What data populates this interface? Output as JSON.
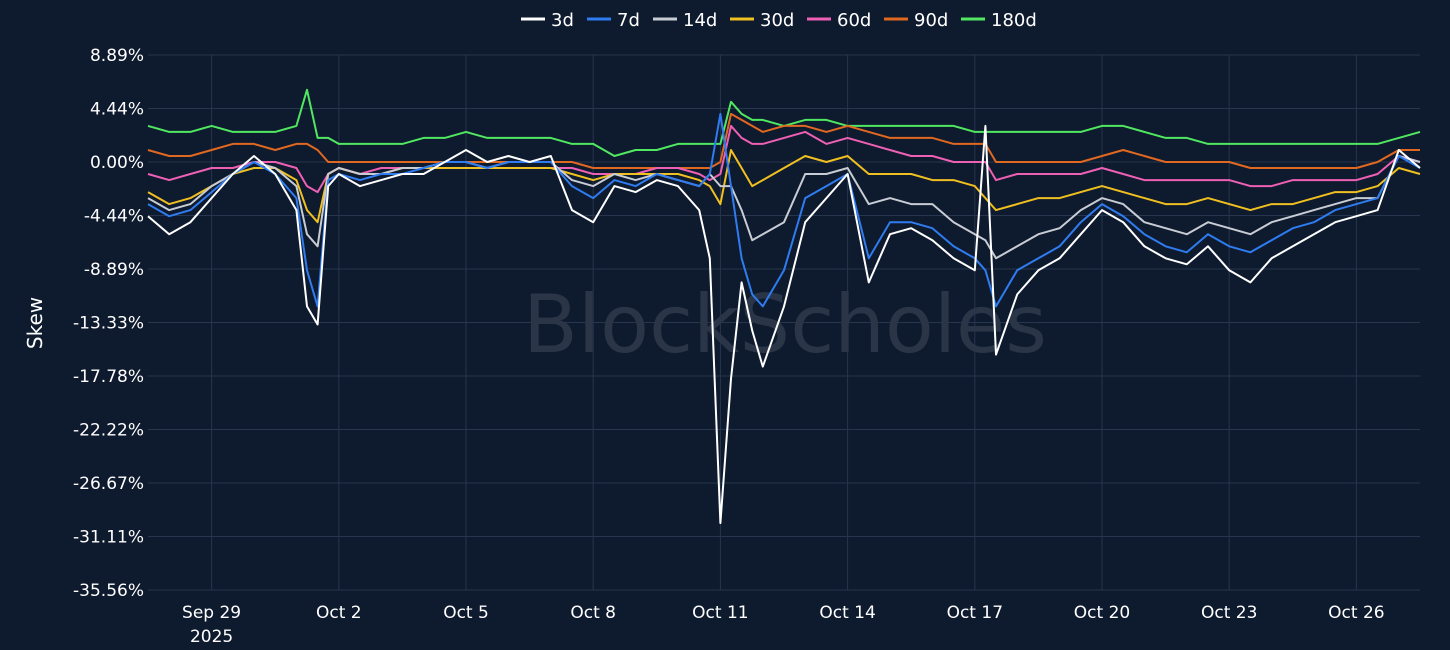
{
  "chart_data": {
    "type": "line",
    "ylabel": "Skew",
    "watermark": "BlockScholes",
    "legend_position": "top-center",
    "grid": true,
    "y_unit": "%",
    "y_ticks": [
      8.89,
      4.44,
      0.0,
      -4.44,
      -8.89,
      -13.33,
      -17.78,
      -22.22,
      -26.67,
      -31.11,
      -35.56
    ],
    "y_tick_labels": [
      "8.89%",
      "4.44%",
      "0.00%",
      "-4.44%",
      "-8.89%",
      "-13.33%",
      "-17.78%",
      "-22.22%",
      "-26.67%",
      "-31.11%",
      "-35.56%"
    ],
    "ylim": [
      -35.56,
      8.89
    ],
    "xlim": [
      "2025-09-27T12:00",
      "2025-10-27T12:00"
    ],
    "x_ticks": [
      "2025-09-29",
      "2025-10-02",
      "2025-10-05",
      "2025-10-08",
      "2025-10-11",
      "2025-10-14",
      "2025-10-17",
      "2025-10-20",
      "2025-10-23",
      "2025-10-26"
    ],
    "x_tick_labels": [
      "Sep 29",
      "Oct 2",
      "Oct 5",
      "Oct 8",
      "Oct 11",
      "Oct 14",
      "Oct 17",
      "Oct 20",
      "Oct 23",
      "Oct 26"
    ],
    "x_tick_year": "2025",
    "x": [
      "2025-09-27T12:00",
      "2025-09-28T00:00",
      "2025-09-28T12:00",
      "2025-09-29T00:00",
      "2025-09-29T12:00",
      "2025-09-30T00:00",
      "2025-09-30T12:00",
      "2025-10-01T00:00",
      "2025-10-01T06:00",
      "2025-10-01T12:00",
      "2025-10-01T18:00",
      "2025-10-02T00:00",
      "2025-10-02T12:00",
      "2025-10-03T00:00",
      "2025-10-03T12:00",
      "2025-10-04T00:00",
      "2025-10-04T12:00",
      "2025-10-05T00:00",
      "2025-10-05T12:00",
      "2025-10-06T00:00",
      "2025-10-06T12:00",
      "2025-10-07T00:00",
      "2025-10-07T12:00",
      "2025-10-08T00:00",
      "2025-10-08T12:00",
      "2025-10-09T00:00",
      "2025-10-09T12:00",
      "2025-10-10T00:00",
      "2025-10-10T12:00",
      "2025-10-10T18:00",
      "2025-10-11T00:00",
      "2025-10-11T06:00",
      "2025-10-11T12:00",
      "2025-10-11T18:00",
      "2025-10-12T00:00",
      "2025-10-12T12:00",
      "2025-10-13T00:00",
      "2025-10-13T12:00",
      "2025-10-14T00:00",
      "2025-10-14T12:00",
      "2025-10-15T00:00",
      "2025-10-15T12:00",
      "2025-10-16T00:00",
      "2025-10-16T12:00",
      "2025-10-17T00:00",
      "2025-10-17T06:00",
      "2025-10-17T12:00",
      "2025-10-18T00:00",
      "2025-10-18T12:00",
      "2025-10-19T00:00",
      "2025-10-19T12:00",
      "2025-10-20T00:00",
      "2025-10-20T12:00",
      "2025-10-21T00:00",
      "2025-10-21T12:00",
      "2025-10-22T00:00",
      "2025-10-22T12:00",
      "2025-10-23T00:00",
      "2025-10-23T12:00",
      "2025-10-24T00:00",
      "2025-10-24T12:00",
      "2025-10-25T00:00",
      "2025-10-25T12:00",
      "2025-10-26T00:00",
      "2025-10-26T12:00",
      "2025-10-27T00:00",
      "2025-10-27T12:00"
    ],
    "series": [
      {
        "name": "3d",
        "color": "#ffffff",
        "values": [
          -4.5,
          -6.0,
          -5.0,
          -3.0,
          -1.0,
          0.5,
          -1.0,
          -4.0,
          -12.0,
          -13.5,
          -2.0,
          -1.0,
          -2.0,
          -1.5,
          -1.0,
          -1.0,
          0.0,
          1.0,
          0.0,
          0.5,
          0.0,
          0.5,
          -4.0,
          -5.0,
          -2.0,
          -2.5,
          -1.5,
          -2.0,
          -4.0,
          -8.0,
          -30.0,
          -18.0,
          -10.0,
          -14.0,
          -17.0,
          -12.0,
          -5.0,
          -3.0,
          -1.0,
          -10.0,
          -6.0,
          -5.5,
          -6.5,
          -8.0,
          -9.0,
          3.0,
          -16.0,
          -11.0,
          -9.0,
          -8.0,
          -6.0,
          -4.0,
          -5.0,
          -7.0,
          -8.0,
          -8.5,
          -7.0,
          -9.0,
          -10.0,
          -8.0,
          -7.0,
          -6.0,
          -5.0,
          -4.5,
          -4.0,
          1.0,
          -0.5
        ]
      },
      {
        "name": "7d",
        "color": "#2f7cf0",
        "values": [
          -3.5,
          -4.5,
          -4.0,
          -2.5,
          -1.0,
          0.0,
          -1.0,
          -3.0,
          -9.0,
          -12.0,
          -1.5,
          -1.0,
          -1.5,
          -1.0,
          -1.0,
          -0.5,
          0.0,
          0.0,
          -0.5,
          0.0,
          0.0,
          0.0,
          -2.0,
          -3.0,
          -1.5,
          -2.0,
          -1.0,
          -1.5,
          -2.0,
          -1.0,
          4.0,
          -2.0,
          -8.0,
          -11.0,
          -12.0,
          -9.0,
          -3.0,
          -2.0,
          -1.0,
          -8.0,
          -5.0,
          -5.0,
          -5.5,
          -7.0,
          -8.0,
          -9.0,
          -12.0,
          -9.0,
          -8.0,
          -7.0,
          -5.0,
          -3.5,
          -4.5,
          -6.0,
          -7.0,
          -7.5,
          -6.0,
          -7.0,
          -7.5,
          -6.5,
          -5.5,
          -5.0,
          -4.0,
          -3.5,
          -3.0,
          0.5,
          -0.5
        ]
      },
      {
        "name": "14d",
        "color": "#c8ccd4",
        "values": [
          -3.0,
          -4.0,
          -3.5,
          -2.0,
          -1.0,
          0.0,
          -0.5,
          -2.0,
          -6.0,
          -7.0,
          -1.0,
          -0.5,
          -1.0,
          -1.0,
          -0.5,
          -0.5,
          0.0,
          0.0,
          -0.5,
          0.0,
          0.0,
          0.0,
          -1.5,
          -2.0,
          -1.0,
          -1.5,
          -1.0,
          -1.5,
          -2.0,
          -1.0,
          -2.0,
          -2.0,
          -4.0,
          -6.5,
          -6.0,
          -5.0,
          -1.0,
          -1.0,
          -0.5,
          -3.5,
          -3.0,
          -3.5,
          -3.5,
          -5.0,
          -6.0,
          -6.5,
          -8.0,
          -7.0,
          -6.0,
          -5.5,
          -4.0,
          -3.0,
          -3.5,
          -5.0,
          -5.5,
          -6.0,
          -5.0,
          -5.5,
          -6.0,
          -5.0,
          -4.5,
          -4.0,
          -3.5,
          -3.0,
          -3.0,
          0.5,
          0.0
        ]
      },
      {
        "name": "30d",
        "color": "#f0c020",
        "values": [
          -2.5,
          -3.5,
          -3.0,
          -2.0,
          -1.0,
          -0.5,
          -0.5,
          -1.5,
          -4.0,
          -5.0,
          -1.0,
          -0.5,
          -1.0,
          -1.0,
          -0.5,
          -0.5,
          -0.5,
          -0.5,
          -0.5,
          -0.5,
          -0.5,
          -0.5,
          -1.0,
          -1.5,
          -1.0,
          -1.0,
          -1.0,
          -1.0,
          -1.5,
          -2.0,
          -3.5,
          1.0,
          -0.5,
          -2.0,
          -1.5,
          -0.5,
          0.5,
          0.0,
          0.5,
          -1.0,
          -1.0,
          -1.0,
          -1.5,
          -1.5,
          -2.0,
          -3.0,
          -4.0,
          -3.5,
          -3.0,
          -3.0,
          -2.5,
          -2.0,
          -2.5,
          -3.0,
          -3.5,
          -3.5,
          -3.0,
          -3.5,
          -4.0,
          -3.5,
          -3.5,
          -3.0,
          -2.5,
          -2.5,
          -2.0,
          -0.5,
          -1.0
        ]
      },
      {
        "name": "60d",
        "color": "#ee60b4",
        "values": [
          -1.0,
          -1.5,
          -1.0,
          -0.5,
          -0.5,
          0.0,
          0.0,
          -0.5,
          -2.0,
          -2.5,
          -1.0,
          -0.5,
          -1.0,
          -0.5,
          -0.5,
          -0.5,
          -0.5,
          -0.5,
          -0.5,
          -0.5,
          -0.5,
          -0.5,
          -0.5,
          -1.0,
          -1.0,
          -1.0,
          -0.5,
          -0.5,
          -1.0,
          -1.5,
          -1.0,
          3.0,
          2.0,
          1.5,
          1.5,
          2.0,
          2.5,
          1.5,
          2.0,
          1.5,
          1.0,
          0.5,
          0.5,
          0.0,
          0.0,
          0.0,
          -1.5,
          -1.0,
          -1.0,
          -1.0,
          -1.0,
          -0.5,
          -1.0,
          -1.5,
          -1.5,
          -1.5,
          -1.5,
          -1.5,
          -2.0,
          -2.0,
          -1.5,
          -1.5,
          -1.5,
          -1.5,
          -1.0,
          0.5,
          0.0
        ]
      },
      {
        "name": "90d",
        "color": "#e06820",
        "values": [
          1.0,
          0.5,
          0.5,
          1.0,
          1.5,
          1.5,
          1.0,
          1.5,
          1.5,
          1.0,
          0.0,
          0.0,
          0.0,
          0.0,
          0.0,
          0.0,
          0.0,
          0.0,
          0.0,
          0.0,
          0.0,
          0.0,
          0.0,
          -0.5,
          -0.5,
          -0.5,
          -0.5,
          -0.5,
          -0.5,
          -0.5,
          0.0,
          4.0,
          3.5,
          3.0,
          2.5,
          3.0,
          3.0,
          2.5,
          3.0,
          2.5,
          2.0,
          2.0,
          2.0,
          1.5,
          1.5,
          1.5,
          0.0,
          0.0,
          0.0,
          0.0,
          0.0,
          0.5,
          1.0,
          0.5,
          0.0,
          0.0,
          0.0,
          0.0,
          -0.5,
          -0.5,
          -0.5,
          -0.5,
          -0.5,
          -0.5,
          0.0,
          1.0,
          1.0
        ]
      },
      {
        "name": "180d",
        "color": "#50e860",
        "values": [
          3.0,
          2.5,
          2.5,
          3.0,
          2.5,
          2.5,
          2.5,
          3.0,
          6.0,
          2.0,
          2.0,
          1.5,
          1.5,
          1.5,
          1.5,
          2.0,
          2.0,
          2.5,
          2.0,
          2.0,
          2.0,
          2.0,
          1.5,
          1.5,
          0.5,
          1.0,
          1.0,
          1.5,
          1.5,
          1.5,
          1.5,
          5.0,
          4.0,
          3.5,
          3.5,
          3.0,
          3.5,
          3.5,
          3.0,
          3.0,
          3.0,
          3.0,
          3.0,
          3.0,
          2.5,
          2.5,
          2.5,
          2.5,
          2.5,
          2.5,
          2.5,
          3.0,
          3.0,
          2.5,
          2.0,
          2.0,
          1.5,
          1.5,
          1.5,
          1.5,
          1.5,
          1.5,
          1.5,
          1.5,
          1.5,
          2.0,
          2.5
        ]
      }
    ]
  }
}
